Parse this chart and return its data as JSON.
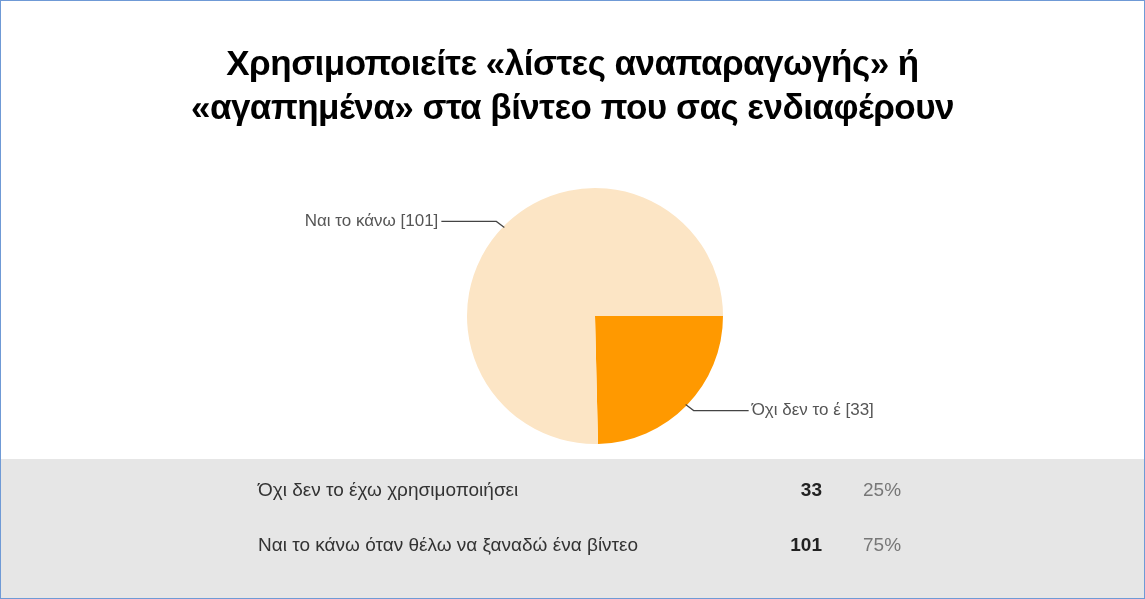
{
  "chart_data": {
    "type": "pie",
    "title": "Χρησιμοποιείτε «λίστες αναπαραγωγής» ή\n«αγαπημένα»  στα βίντεο που σας ενδιαφέρουν",
    "categories": [
      "Όχι δεν το έ",
      "Ναι το κάνω"
    ],
    "values": [
      33,
      101
    ],
    "colors": [
      "#ff9900",
      "#fce5c5"
    ],
    "value_labels": [
      "[33]",
      "[101]"
    ],
    "legend": false,
    "annotations": [
      "Όχι δεν το έχω χρησιμοποιήσει",
      "33",
      "25%",
      "Ναι το κάνω όταν θέλω να ξαναδώ ένα βίντεο",
      "101",
      "75%"
    ]
  }
}
